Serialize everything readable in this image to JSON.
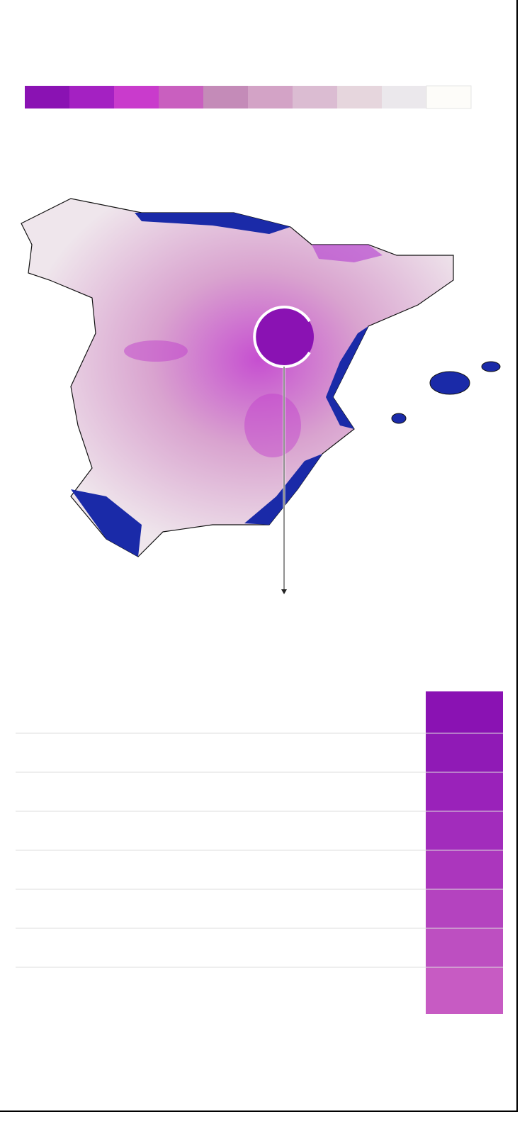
{
  "legend": {
    "colors": [
      "#8a12b3",
      "#a421c2",
      "#c93bcc",
      "#c95fbf",
      "#c48bb8",
      "#d3a3c6",
      "#dbbcd2",
      "#e6d6dd",
      "#ebe8ec",
      "#fdfcf9"
    ]
  },
  "table": {
    "row_colors": [
      "#8a12b3",
      "#901ab6",
      "#9a22ba",
      "#a22cbc",
      "#ab36bd",
      "#b443bf",
      "#bd4fc1",
      "#c75bc3"
    ]
  }
}
